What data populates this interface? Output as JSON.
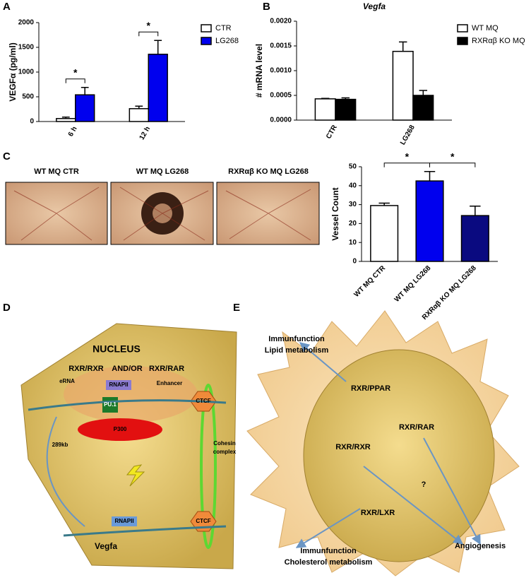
{
  "panel_labels": [
    "A",
    "B",
    "C",
    "D",
    "E"
  ],
  "chart_data": [
    {
      "type": "bar",
      "ylabel": "VEGFα (pg/ml)",
      "categories": [
        "6 h",
        "12 h"
      ],
      "series": [
        {
          "name": "CTR",
          "color": "#ffffff",
          "values": [
            60,
            260
          ],
          "errors": [
            30,
            50
          ]
        },
        {
          "name": "LG268",
          "color": "#0000ee",
          "values": [
            540,
            1360
          ],
          "errors": [
            150,
            280
          ]
        }
      ],
      "ylim": [
        0,
        2000
      ],
      "yticks": [
        0,
        500,
        1000,
        1500,
        2000
      ],
      "annotations": [
        "*",
        "*"
      ]
    },
    {
      "type": "bar",
      "title": "Vegfa",
      "ylabel": "# mRNA level",
      "categories": [
        "CTR",
        "LG268"
      ],
      "series": [
        {
          "name": "WT MQ",
          "color": "#ffffff",
          "values": [
            0.00043,
            0.00139
          ],
          "errors": [
            1e-05,
            0.00019
          ]
        },
        {
          "name": "RXRαβ KO MQ",
          "color": "#000000",
          "values": [
            0.00042,
            0.0005
          ],
          "errors": [
            3e-05,
            0.0001
          ]
        }
      ],
      "ylim": [
        0,
        0.002
      ],
      "yticks": [
        {
          "value": 0,
          "label": "0.0000"
        },
        {
          "value": 0.0005,
          "label": "0.0005"
        },
        {
          "value": 0.001,
          "label": "0.0010"
        },
        {
          "value": 0.0015,
          "label": "0.0015"
        },
        {
          "value": 0.002,
          "label": "0.0020"
        }
      ]
    },
    {
      "type": "bar",
      "ylabel": "Vessel Count",
      "categories": [
        "WT MQ CTR",
        "WT MQ LG268",
        "RXRαβ KO MQ LG268"
      ],
      "values": [
        29.5,
        42.5,
        24.2
      ],
      "errors": [
        1.3,
        5,
        5
      ],
      "colors": [
        "#ffffff",
        "#0000ee",
        "#0a0a80"
      ],
      "ylim": [
        0,
        50
      ],
      "yticks": [
        0,
        10,
        20,
        30,
        40,
        50
      ],
      "annotations": [
        "*",
        "*"
      ]
    }
  ],
  "panel_c_images": [
    "WT MQ CTR",
    "WT MQ LG268",
    "RXRαβ KO MQ LG268"
  ],
  "panel_d": {
    "nucleus": "NUCLEUS",
    "rxr_rxr": "RXR/RXR",
    "and_or": "AND/OR",
    "rxr_rar": "RXR/RAR",
    "erna": "eRNA",
    "rnapii_top": "RNAPII",
    "enhancer": "Enhancer",
    "pu1": "PU.1",
    "ctcf_top": "CTCF",
    "p300": "P300",
    "distance": "289kb",
    "cohesin": [
      "Cohesin",
      "complex"
    ],
    "ctcf_bottom": "CTCF",
    "rnapii_bottom": "RNAPII",
    "gene": "Vegfa"
  },
  "panel_e": {
    "top_outputs": [
      "Immunfunction",
      "Lipid metabolism"
    ],
    "rxr_ppar": "RXR/PPAR",
    "rxr_rar": "RXR/RAR",
    "rxr_rxr": "RXR/RXR",
    "question": "?",
    "rxr_lxr": "RXR/LXR",
    "angiogenesis": "Angiogenesis",
    "bottom_outputs": [
      "Immunfunction",
      "Cholesterol metabolism"
    ]
  }
}
